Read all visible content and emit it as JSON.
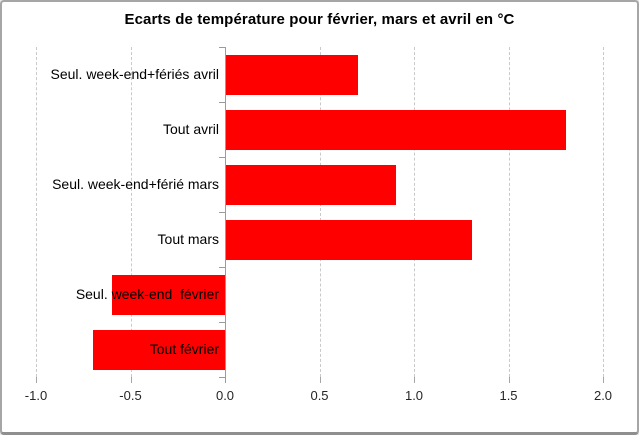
{
  "window": {
    "background_color": "#ffffff",
    "frame_border_color": "#a6a6a6"
  },
  "chart_data": {
    "type": "bar",
    "orientation": "horizontal",
    "title": "Ecarts de température pour février, mars et avril en °C",
    "categories": [
      "Seul. week-end+fériés avril",
      "Tout avril",
      "Seul. week-end+férié mars",
      "Tout mars",
      "Seul. week-end  février",
      "Tout février"
    ],
    "values": [
      0.7,
      1.8,
      0.9,
      1.3,
      -0.6,
      -0.7
    ],
    "bar_color": "#ff0000",
    "xlim": [
      -1.0,
      2.0
    ],
    "tick_step": 0.5,
    "tick_labels": [
      "-1.0",
      "-0.5",
      "0.0",
      "0.5",
      "1.0",
      "1.5",
      "2.0"
    ],
    "xlabel": "",
    "ylabel": "",
    "grid": "vertical-dashed",
    "gridline_color": "#c9c9c9",
    "axis_color": "#9b9b9b",
    "legend": "none"
  }
}
